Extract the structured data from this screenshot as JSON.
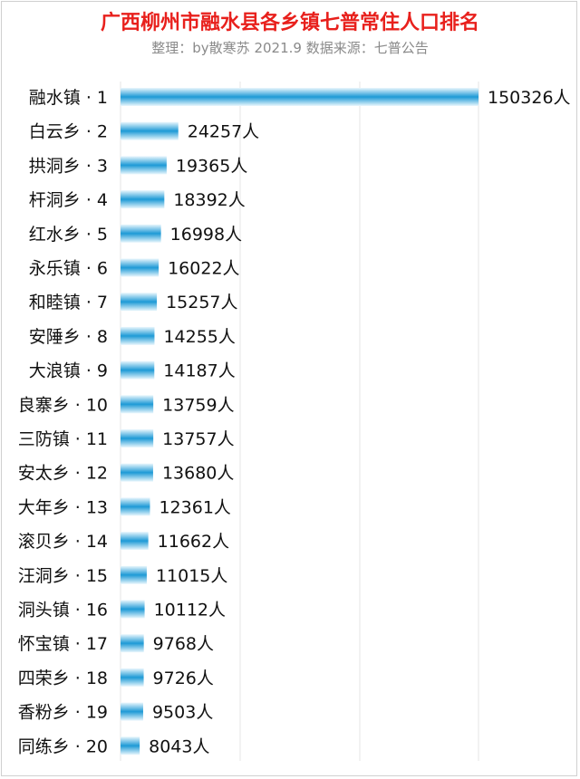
{
  "header": {
    "title": "广西柳州市融水县各乡镇七普常住人口排名",
    "subtitle": "整理：by散寒苏  2021.9  数据来源：七普公告"
  },
  "colors": {
    "title": "#e8201c",
    "bar_dark": "#1e9ad6",
    "bar_light": "#bfe6f8",
    "grid": "#e6e6e6"
  },
  "chart_data": {
    "type": "bar",
    "orientation": "horizontal",
    "title": "广西柳州市融水县各乡镇七普常住人口排名",
    "subtitle": "整理：by散寒苏  2021.9  数据来源：七普公告",
    "categories": [
      "融水镇 · 1",
      "白云乡 · 2",
      "拱洞乡 · 3",
      "杆洞乡 · 4",
      "红水乡 · 5",
      "永乐镇 · 6",
      "和睦镇 · 7",
      "安陲乡 · 8",
      "大浪镇 · 9",
      "良寨乡 · 10",
      "三防镇 · 11",
      "安太乡 · 12",
      "大年乡 · 13",
      "滚贝乡 · 14",
      "汪洞乡 · 15",
      "洞头镇 · 16",
      "怀宝镇 · 17",
      "四荣乡 · 18",
      "香粉乡 · 19",
      "同练乡 · 20"
    ],
    "values": [
      150326,
      24257,
      19365,
      18392,
      16998,
      16022,
      15257,
      14255,
      14187,
      13759,
      13757,
      13680,
      12361,
      11662,
      11015,
      10112,
      9768,
      9726,
      9503,
      8043
    ],
    "value_labels": [
      "150326人",
      "24257人",
      "19365人",
      "18392人",
      "16998人",
      "16022人",
      "15257人",
      "14255人",
      "14187人",
      "13759人",
      "13757人",
      "13680人",
      "12361人",
      "11662人",
      "11015人",
      "10112人",
      "9768人",
      "9726人",
      "9503人",
      "8043人"
    ],
    "xlim": [
      0,
      150326
    ],
    "grid": true,
    "legend": "none",
    "xlabel": "",
    "ylabel": ""
  }
}
